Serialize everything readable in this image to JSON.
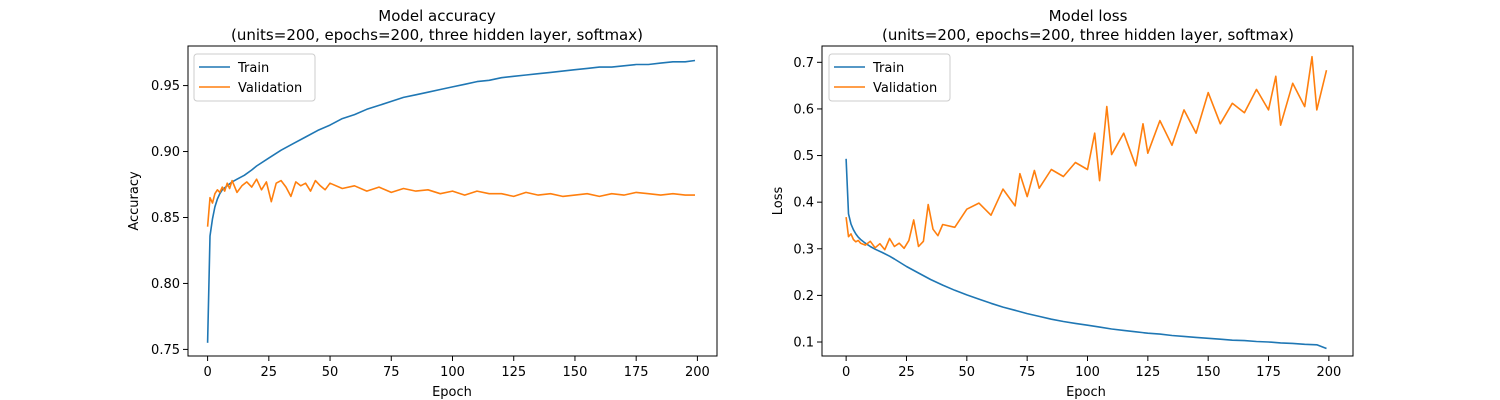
{
  "chart_data": [
    {
      "type": "line",
      "title": [
        "Model accuracy",
        "(units=200, epochs=200, three hidden layer, softmax)"
      ],
      "xlabel": "Epoch",
      "ylabel": "Accuracy",
      "xlim": [
        -8,
        208
      ],
      "ylim": [
        0.745,
        0.98
      ],
      "xticks": [
        0,
        25,
        50,
        75,
        100,
        125,
        150,
        175,
        200
      ],
      "yticks": [
        0.75,
        0.8,
        0.85,
        0.9,
        0.95
      ],
      "ytick_labels": [
        "0.75",
        "0.80",
        "0.85",
        "0.90",
        "0.95"
      ],
      "legend_position": "upper-left",
      "grid": false,
      "series": [
        {
          "name": "Train",
          "color": "#1f77b4",
          "x": [
            0,
            1,
            2,
            3,
            4,
            5,
            6,
            8,
            10,
            12,
            15,
            18,
            20,
            25,
            30,
            35,
            40,
            45,
            50,
            55,
            60,
            65,
            70,
            75,
            80,
            85,
            90,
            95,
            100,
            105,
            110,
            115,
            120,
            125,
            130,
            135,
            140,
            145,
            150,
            155,
            160,
            165,
            170,
            175,
            180,
            185,
            190,
            195,
            199
          ],
          "values": [
            0.755,
            0.836,
            0.849,
            0.858,
            0.864,
            0.868,
            0.871,
            0.874,
            0.877,
            0.879,
            0.882,
            0.886,
            0.889,
            0.895,
            0.901,
            0.906,
            0.911,
            0.916,
            0.92,
            0.925,
            0.928,
            0.932,
            0.935,
            0.938,
            0.941,
            0.943,
            0.945,
            0.947,
            0.949,
            0.951,
            0.953,
            0.954,
            0.956,
            0.957,
            0.958,
            0.959,
            0.96,
            0.961,
            0.962,
            0.963,
            0.964,
            0.964,
            0.965,
            0.966,
            0.966,
            0.967,
            0.968,
            0.968,
            0.969
          ]
        },
        {
          "name": "Validation",
          "color": "#ff7f0e",
          "x": [
            0,
            1,
            2,
            3,
            4,
            5,
            6,
            7,
            8,
            9,
            10,
            12,
            14,
            16,
            18,
            20,
            22,
            24,
            26,
            28,
            30,
            32,
            34,
            36,
            38,
            40,
            42,
            44,
            46,
            48,
            50,
            55,
            60,
            65,
            70,
            75,
            80,
            85,
            90,
            95,
            100,
            105,
            110,
            115,
            120,
            125,
            130,
            135,
            140,
            145,
            150,
            155,
            160,
            165,
            170,
            175,
            180,
            185,
            190,
            195,
            199
          ],
          "values": [
            0.843,
            0.865,
            0.861,
            0.868,
            0.871,
            0.869,
            0.873,
            0.87,
            0.876,
            0.872,
            0.878,
            0.869,
            0.874,
            0.877,
            0.873,
            0.879,
            0.871,
            0.877,
            0.862,
            0.876,
            0.878,
            0.873,
            0.866,
            0.877,
            0.874,
            0.876,
            0.87,
            0.878,
            0.874,
            0.871,
            0.876,
            0.872,
            0.874,
            0.87,
            0.873,
            0.869,
            0.872,
            0.87,
            0.871,
            0.868,
            0.87,
            0.867,
            0.87,
            0.868,
            0.868,
            0.866,
            0.869,
            0.867,
            0.868,
            0.866,
            0.867,
            0.868,
            0.866,
            0.868,
            0.867,
            0.869,
            0.868,
            0.867,
            0.868,
            0.867,
            0.867
          ]
        }
      ]
    },
    {
      "type": "line",
      "title": [
        "Model loss",
        "(units=200, epochs=200, three hidden layer, softmax)"
      ],
      "xlabel": "Epoch",
      "ylabel": "Loss",
      "xlim": [
        -10,
        210
      ],
      "ylim": [
        0.07,
        0.735
      ],
      "xticks": [
        0,
        25,
        50,
        75,
        100,
        125,
        150,
        175,
        200
      ],
      "yticks": [
        0.1,
        0.2,
        0.3,
        0.4,
        0.5,
        0.6,
        0.7
      ],
      "ytick_labels": [
        "0.1",
        "0.2",
        "0.3",
        "0.4",
        "0.5",
        "0.6",
        "0.7"
      ],
      "legend_position": "upper-left",
      "grid": false,
      "series": [
        {
          "name": "Train",
          "color": "#1f77b4",
          "x": [
            0,
            1,
            2,
            3,
            4,
            5,
            6,
            8,
            10,
            12,
            15,
            18,
            20,
            25,
            30,
            35,
            40,
            45,
            50,
            55,
            60,
            65,
            70,
            75,
            80,
            85,
            90,
            95,
            100,
            105,
            110,
            115,
            120,
            125,
            130,
            135,
            140,
            145,
            150,
            155,
            160,
            165,
            170,
            175,
            180,
            185,
            190,
            195,
            199
          ],
          "values": [
            0.493,
            0.375,
            0.353,
            0.341,
            0.332,
            0.325,
            0.32,
            0.312,
            0.305,
            0.299,
            0.292,
            0.284,
            0.278,
            0.262,
            0.248,
            0.234,
            0.222,
            0.211,
            0.201,
            0.192,
            0.183,
            0.175,
            0.168,
            0.161,
            0.155,
            0.149,
            0.144,
            0.14,
            0.136,
            0.132,
            0.128,
            0.125,
            0.122,
            0.119,
            0.117,
            0.114,
            0.112,
            0.11,
            0.108,
            0.106,
            0.104,
            0.103,
            0.101,
            0.1,
            0.098,
            0.097,
            0.095,
            0.094,
            0.086
          ]
        },
        {
          "name": "Validation",
          "color": "#ff7f0e",
          "x": [
            0,
            1,
            2,
            3,
            4,
            5,
            6,
            8,
            10,
            12,
            14,
            16,
            18,
            20,
            22,
            24,
            26,
            28,
            30,
            32,
            34,
            36,
            38,
            40,
            45,
            50,
            55,
            60,
            65,
            70,
            72,
            75,
            78,
            80,
            85,
            90,
            95,
            100,
            103,
            105,
            108,
            110,
            115,
            120,
            123,
            125,
            130,
            135,
            140,
            145,
            150,
            155,
            160,
            165,
            170,
            175,
            178,
            180,
            185,
            190,
            193,
            195,
            197,
            199
          ],
          "values": [
            0.368,
            0.326,
            0.332,
            0.32,
            0.315,
            0.318,
            0.312,
            0.308,
            0.316,
            0.302,
            0.311,
            0.298,
            0.322,
            0.305,
            0.312,
            0.301,
            0.318,
            0.362,
            0.305,
            0.316,
            0.395,
            0.342,
            0.328,
            0.352,
            0.346,
            0.385,
            0.398,
            0.372,
            0.428,
            0.392,
            0.461,
            0.412,
            0.468,
            0.43,
            0.47,
            0.455,
            0.485,
            0.47,
            0.548,
            0.446,
            0.605,
            0.502,
            0.548,
            0.478,
            0.568,
            0.505,
            0.575,
            0.522,
            0.598,
            0.548,
            0.635,
            0.568,
            0.612,
            0.592,
            0.642,
            0.598,
            0.67,
            0.565,
            0.655,
            0.605,
            0.712,
            0.598,
            0.64,
            0.683
          ]
        }
      ]
    }
  ]
}
